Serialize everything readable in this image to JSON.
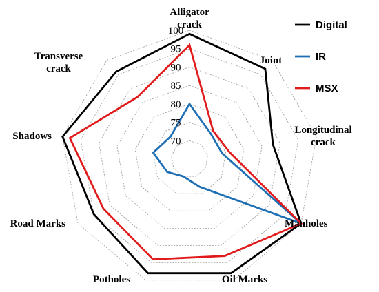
{
  "chart_data": {
    "type": "radar",
    "categories": [
      [
        "Alligator",
        "crack"
      ],
      [
        "Joint"
      ],
      [
        "Longitudinal",
        "crack"
      ],
      [
        "Manholes"
      ],
      [
        "Oil Marks"
      ],
      [
        "Potholes"
      ],
      [
        "Road Marks"
      ],
      [
        "Shadows"
      ],
      [
        "Transverse",
        "crack"
      ]
    ],
    "ticks": [
      "70",
      "75",
      "80",
      "85",
      "90",
      "95",
      "100"
    ],
    "rlim": [
      65,
      100
    ],
    "grid": true,
    "legend_position": "top-right",
    "series": [
      {
        "name": "Digital",
        "color": "#000000",
        "values": [
          99,
          97,
          88,
          100,
          98,
          98,
          95,
          100,
          96
        ]
      },
      {
        "name": "IR",
        "color": "#1f6fb5",
        "values": [
          80,
          74,
          74,
          100,
          73,
          70,
          72,
          75,
          73
        ]
      },
      {
        "name": "MSX",
        "color": "#e11b1b",
        "values": [
          96,
          75,
          76,
          100,
          93,
          94,
          92,
          98,
          87
        ]
      }
    ]
  }
}
